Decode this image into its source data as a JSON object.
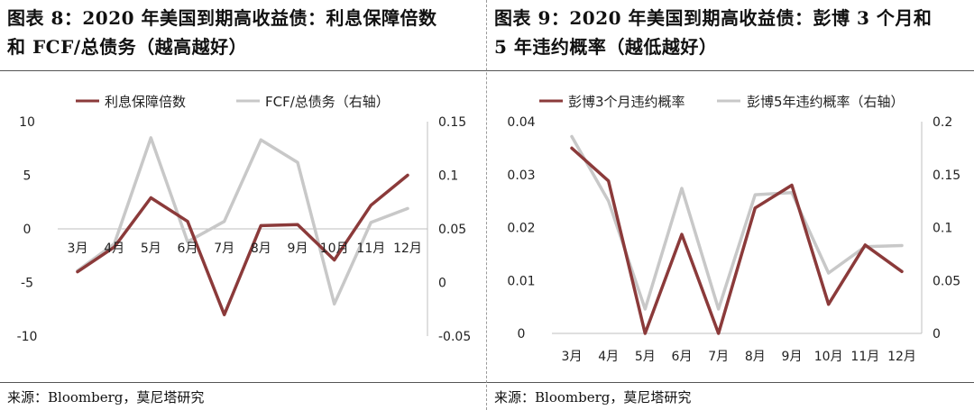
{
  "panels": [
    {
      "title_line1": "图表 8：2020 年美国到期高收益债：利息保障倍数",
      "title_line2": "和 FCF/总债务（越高越好）",
      "source": "来源：Bloomberg，莫尼塔研究"
    },
    {
      "title_line1": "图表 9：2020 年美国到期高收益债：彭博 3 个月和",
      "title_line2": "5 年违约概率（越低越好）",
      "source": "来源：Bloomberg，莫尼塔研究"
    }
  ],
  "colors": {
    "primary": "#8b3a3a",
    "secondary": "#c8c8c8"
  },
  "chart_data": [
    {
      "type": "line",
      "categories": [
        "3月",
        "4月",
        "5月",
        "6月",
        "7月",
        "8月",
        "9月",
        "10月",
        "11月",
        "12月"
      ],
      "series": [
        {
          "name": "利息保障倍数",
          "axis": "left",
          "color": "#8b3a3a",
          "values": [
            -4,
            -1.7,
            2.9,
            0.7,
            -8,
            0.3,
            0.4,
            -2.9,
            2.2,
            5.0
          ]
        },
        {
          "name": "FCF/总债务（右轴）",
          "axis": "right",
          "color": "#c8c8c8",
          "values": [
            0.011,
            0.036,
            0.135,
            0.038,
            0.057,
            0.133,
            0.112,
            -0.02,
            0.056,
            0.069
          ]
        }
      ],
      "y_left": {
        "ylim": [
          -10,
          10
        ],
        "ticks": [
          "10",
          "5",
          "0",
          "-5",
          "-10"
        ],
        "tick_values": [
          10,
          5,
          0,
          -5,
          -10
        ]
      },
      "y_right": {
        "ylim": [
          -0.05,
          0.15
        ],
        "ticks": [
          "0.15",
          "0.1",
          "0.05",
          "0",
          "-0.05"
        ],
        "tick_values": [
          0.15,
          0.1,
          0.05,
          0,
          -0.05
        ]
      },
      "x_label_position": "at-zero",
      "legend_position": "top",
      "grid": false
    },
    {
      "type": "line",
      "categories": [
        "3月",
        "4月",
        "5月",
        "6月",
        "7月",
        "8月",
        "9月",
        "10月",
        "11月",
        "12月"
      ],
      "series": [
        {
          "name": "彭博3个月违约概率",
          "axis": "left",
          "color": "#8b3a3a",
          "values": [
            0.035,
            0.0288,
            0,
            0.0187,
            0,
            0.0237,
            0.028,
            0.0055,
            0.0167,
            0.0117
          ]
        },
        {
          "name": "彭博5年违约概率（右轴）",
          "axis": "right",
          "color": "#c8c8c8",
          "values": [
            0.186,
            0.125,
            0.023,
            0.137,
            0.023,
            0.131,
            0.133,
            0.057,
            0.082,
            0.083
          ]
        }
      ],
      "y_left": {
        "ylim": [
          0,
          0.04
        ],
        "ticks": [
          "0.04",
          "0.03",
          "0.02",
          "0.01",
          "0"
        ],
        "tick_values": [
          0.04,
          0.03,
          0.02,
          0.01,
          0
        ]
      },
      "y_right": {
        "ylim": [
          0,
          0.2
        ],
        "ticks": [
          "0.2",
          "0.15",
          "0.1",
          "0.05",
          "0"
        ],
        "tick_values": [
          0.2,
          0.15,
          0.1,
          0.05,
          0
        ]
      },
      "x_label_position": "bottom",
      "legend_position": "top",
      "grid": false
    }
  ]
}
